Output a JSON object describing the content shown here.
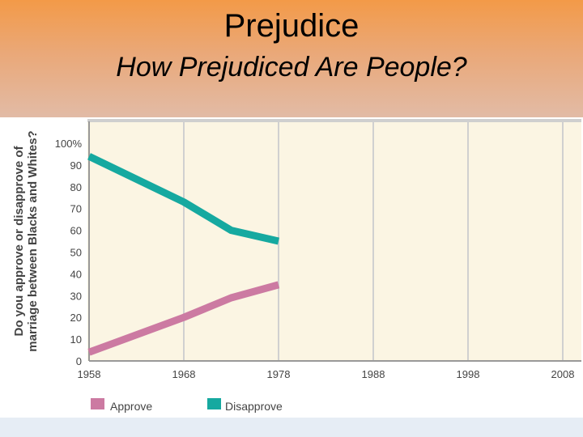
{
  "slide": {
    "title": "Prejudice",
    "subtitle": "How Prejudiced Are People?"
  },
  "colors": {
    "approve": "#cc7aa2",
    "disapprove": "#16a9a0",
    "plot_bg": "#fbf5e3",
    "grid": "#d0d0d0"
  },
  "chart_data": {
    "type": "line",
    "ylabel": [
      "Do you approve  or disapprove of",
      "marriage between Blacks and Whites?"
    ],
    "xlim": [
      1958,
      2008
    ],
    "ylim": [
      0,
      100
    ],
    "x_ticks": [
      "1958",
      "1968",
      "1978",
      "1988",
      "1998",
      "2008"
    ],
    "y_ticks": [
      "0",
      "10",
      "20",
      "30",
      "40",
      "50",
      "60",
      "70",
      "80",
      "90",
      "100%"
    ],
    "grid": true,
    "legend_position": "bottom-left",
    "series": [
      {
        "name": "Approve",
        "color": "#cc7aa2",
        "x": [
          1958,
          1968,
          1973,
          1978
        ],
        "y": [
          4,
          20,
          29,
          35
        ]
      },
      {
        "name": "Disapprove",
        "color": "#16a9a0",
        "x": [
          1958,
          1968,
          1973,
          1978
        ],
        "y": [
          94,
          73,
          60,
          55
        ]
      }
    ]
  }
}
